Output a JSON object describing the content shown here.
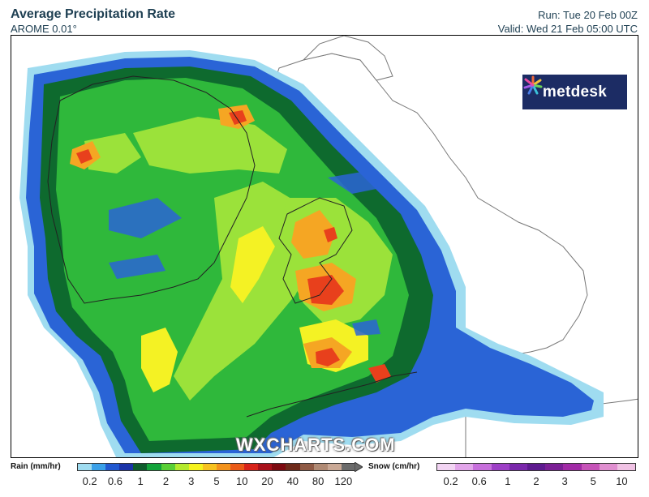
{
  "header": {
    "title": "Average Precipitation Rate",
    "model": "AROME 0.01°",
    "run": "Run: Tue 20 Feb 00Z",
    "valid": "Valid: Wed 21 Feb 05:00 UTC"
  },
  "logo": {
    "text": "metdesk",
    "bg": "#1c2c64"
  },
  "watermark": "WXCHARTS.COM",
  "legend": {
    "rain": {
      "label": "Rain (mm/hr)",
      "ticks": [
        "0.2",
        "0.6",
        "1",
        "2",
        "3",
        "5",
        "10",
        "20",
        "40",
        "80",
        "120"
      ],
      "colors": [
        "#9fdcf0",
        "#3aa0e8",
        "#2158d0",
        "#1a33a8",
        "#0e5c2c",
        "#12a33a",
        "#59cf35",
        "#b4ea2c",
        "#f5f21c",
        "#f7c21e",
        "#f3921c",
        "#ea5a17",
        "#d8231a",
        "#a8101a",
        "#7d0a10",
        "#6e2a1a",
        "#8f5a45",
        "#b08a74",
        "#caa996",
        "#6b6b6b"
      ]
    },
    "snow": {
      "label": "Snow (cm/hr)",
      "ticks": [
        "0.2",
        "0.6",
        "1",
        "2",
        "3",
        "5",
        "10"
      ],
      "colors": [
        "#f2d4f3",
        "#e2a5ea",
        "#c76fdc",
        "#9d3fc6",
        "#7a27ab",
        "#5e1a8f",
        "#7b1f95",
        "#a12aa6",
        "#c653b8",
        "#e08fd0",
        "#f0c2e4"
      ]
    }
  },
  "map": {
    "region": "Ireland & Great Britain",
    "precip_palette": {
      "light_blue": "#9fdcf0",
      "blue": "#2a64d6",
      "dark_green": "#0e6a2e",
      "green": "#2fb83b",
      "lime": "#9be23a",
      "yellow": "#f4f224",
      "orange": "#f5a623",
      "red": "#e8401c"
    }
  }
}
